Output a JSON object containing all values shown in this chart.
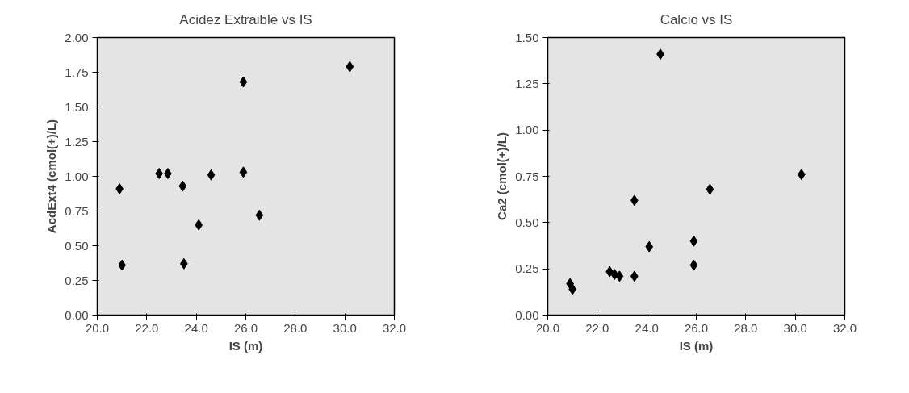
{
  "chart_data": [
    {
      "type": "scatter",
      "title": "Acidez Extraible vs IS",
      "xlabel": "IS (m)",
      "ylabel": "AcdExt4 (cmol(+)/L)",
      "marker": "diamond",
      "grid": false,
      "xlim": [
        20,
        32
      ],
      "xticks": [
        {
          "value": 20,
          "label": "20.0"
        },
        {
          "value": 22,
          "label": "22.0"
        },
        {
          "value": 24,
          "label": "24.0"
        },
        {
          "value": 26,
          "label": "26.0"
        },
        {
          "value": 28,
          "label": "28.0"
        },
        {
          "value": 30,
          "label": "30.0"
        },
        {
          "value": 32,
          "label": "32.0"
        }
      ],
      "ylim": [
        0,
        2
      ],
      "yticks": [
        {
          "value": 0,
          "label": "0.00"
        },
        {
          "value": 0.25,
          "label": "0.25"
        },
        {
          "value": 0.5,
          "label": "0.50"
        },
        {
          "value": 0.75,
          "label": "0.75"
        },
        {
          "value": 1,
          "label": "1.00"
        },
        {
          "value": 1.25,
          "label": "1.25"
        },
        {
          "value": 1.5,
          "label": "1.50"
        },
        {
          "value": 1.75,
          "label": "1.75"
        },
        {
          "value": 2,
          "label": "2.00"
        }
      ],
      "series": [
        {
          "color": "#000000",
          "x": [
            20.9,
            21.0,
            22.5,
            22.85,
            23.45,
            23.5,
            24.1,
            24.6,
            25.9,
            25.9,
            26.55,
            30.2
          ],
          "values": [
            0.91,
            0.36,
            1.02,
            1.02,
            0.93,
            0.37,
            0.65,
            1.01,
            1.68,
            1.03,
            0.72,
            1.79
          ]
        }
      ]
    },
    {
      "type": "scatter",
      "title": "Calcio vs IS",
      "xlabel": "IS (m)",
      "ylabel": "Ca2 (cmol(+)/L)",
      "marker": "diamond",
      "grid": false,
      "xlim": [
        20,
        32
      ],
      "xticks": [
        {
          "value": 20,
          "label": "20.0"
        },
        {
          "value": 22,
          "label": "22.0"
        },
        {
          "value": 24,
          "label": "24.0"
        },
        {
          "value": 26,
          "label": "26.0"
        },
        {
          "value": 28,
          "label": "28.0"
        },
        {
          "value": 30,
          "label": "30.0"
        },
        {
          "value": 32,
          "label": "32.0"
        }
      ],
      "ylim": [
        0,
        1.5
      ],
      "yticks": [
        {
          "value": 0,
          "label": "0.00"
        },
        {
          "value": 0.25,
          "label": "0.25"
        },
        {
          "value": 0.5,
          "label": "0.50"
        },
        {
          "value": 0.75,
          "label": "0.75"
        },
        {
          "value": 1,
          "label": "1.00"
        },
        {
          "value": 1.25,
          "label": "1.25"
        },
        {
          "value": 1.5,
          "label": "1.50"
        }
      ],
      "series": [
        {
          "color": "#000000",
          "x": [
            20.9,
            21.0,
            22.5,
            22.7,
            22.9,
            23.5,
            23.5,
            24.1,
            24.55,
            25.9,
            25.9,
            26.55,
            30.25
          ],
          "values": [
            0.17,
            0.14,
            0.235,
            0.22,
            0.21,
            0.21,
            0.62,
            0.37,
            1.41,
            0.4,
            0.27,
            0.68,
            0.76
          ]
        }
      ]
    }
  ]
}
